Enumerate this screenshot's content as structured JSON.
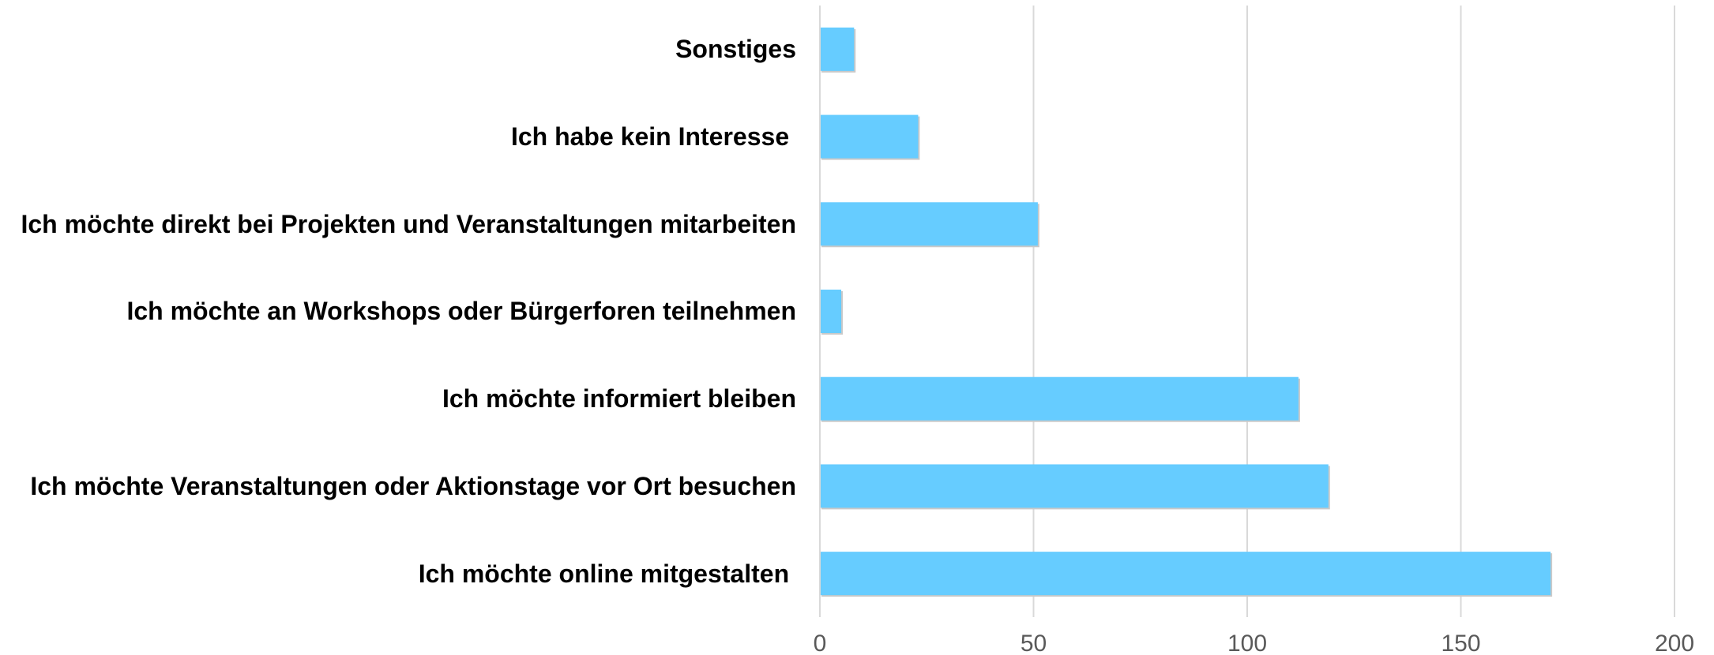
{
  "chart_data": {
    "type": "bar",
    "orientation": "horizontal",
    "categories": [
      "Sonstiges",
      "Ich habe kein Interesse ",
      "Ich möchte direkt bei Projekten und Veranstaltungen mitarbeiten",
      "Ich möchte an Workshops oder Bürgerforen teilnehmen",
      "Ich möchte informiert bleiben",
      "Ich möchte Veranstaltungen oder Aktionstage vor Ort besuchen",
      "Ich möchte online mitgestalten "
    ],
    "values": [
      8,
      23,
      51,
      5,
      112,
      119,
      171
    ],
    "color": "#66ccff",
    "xlim": [
      0,
      200
    ],
    "xticks": [
      0,
      50,
      100,
      150,
      200
    ],
    "grid": true
  }
}
